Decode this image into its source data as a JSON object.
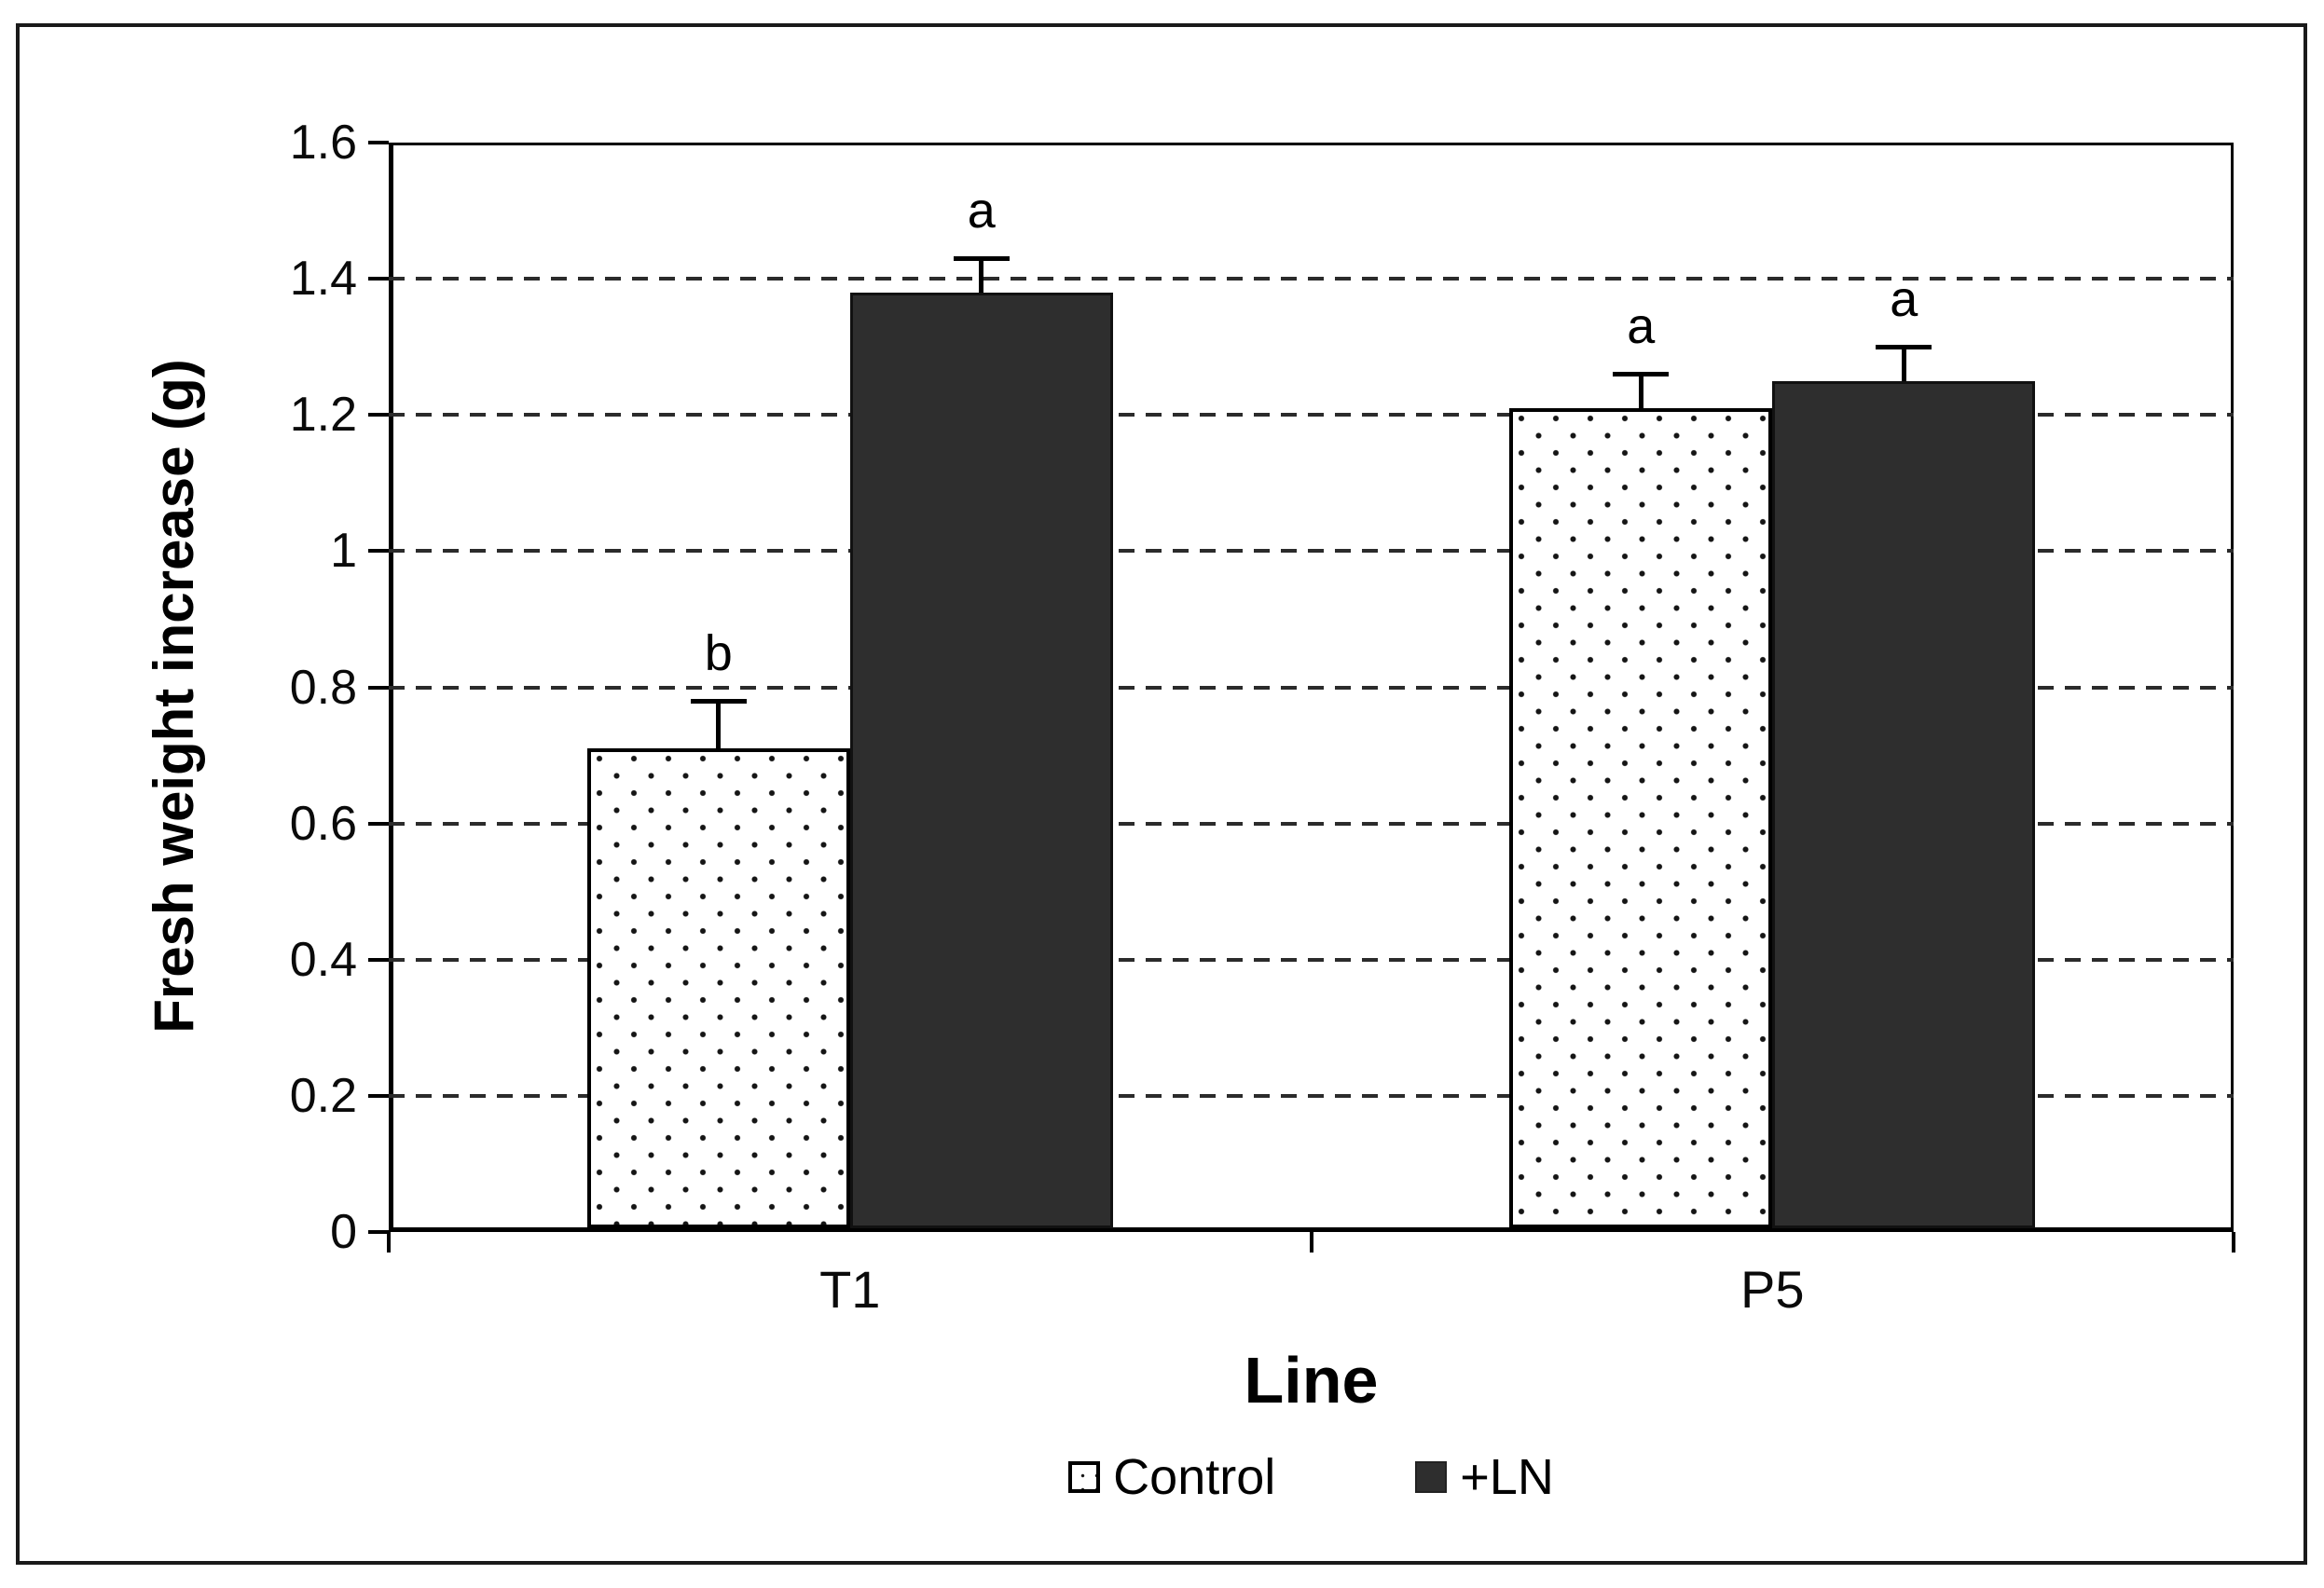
{
  "figure": {
    "background": "#ffffff",
    "border_color": "#1a1a1a"
  },
  "chart_data": {
    "type": "bar",
    "title": "",
    "xlabel": "Line",
    "ylabel": "Fresh weight increase (g)",
    "categories": [
      "T1",
      "P5"
    ],
    "series": [
      {
        "name": "Control",
        "style": "dotted-white",
        "values": [
          0.71,
          1.21
        ],
        "error_plus": [
          0.07,
          0.05
        ],
        "sig_letters": [
          "b",
          "a"
        ]
      },
      {
        "name": "+LN",
        "style": "solid-dark",
        "values": [
          1.38,
          1.25
        ],
        "error_plus": [
          0.05,
          0.05
        ],
        "sig_letters": [
          "a",
          "a"
        ]
      }
    ],
    "ylim": [
      0,
      1.6
    ],
    "ytick_step": 0.2,
    "ytick_labels": [
      "0",
      "0.2",
      "0.4",
      "0.6",
      "0.8",
      "1",
      "1.2",
      "1.4",
      "1.6"
    ],
    "grid": "horizontal-dashed",
    "legend_position": "bottom",
    "colors": {
      "control_fill": "#ffffff",
      "control_dot": "#151515",
      "ln_fill": "#2e2e2e",
      "grid": "#2b2b2b",
      "axis": "#000000",
      "text": "#000000"
    }
  }
}
